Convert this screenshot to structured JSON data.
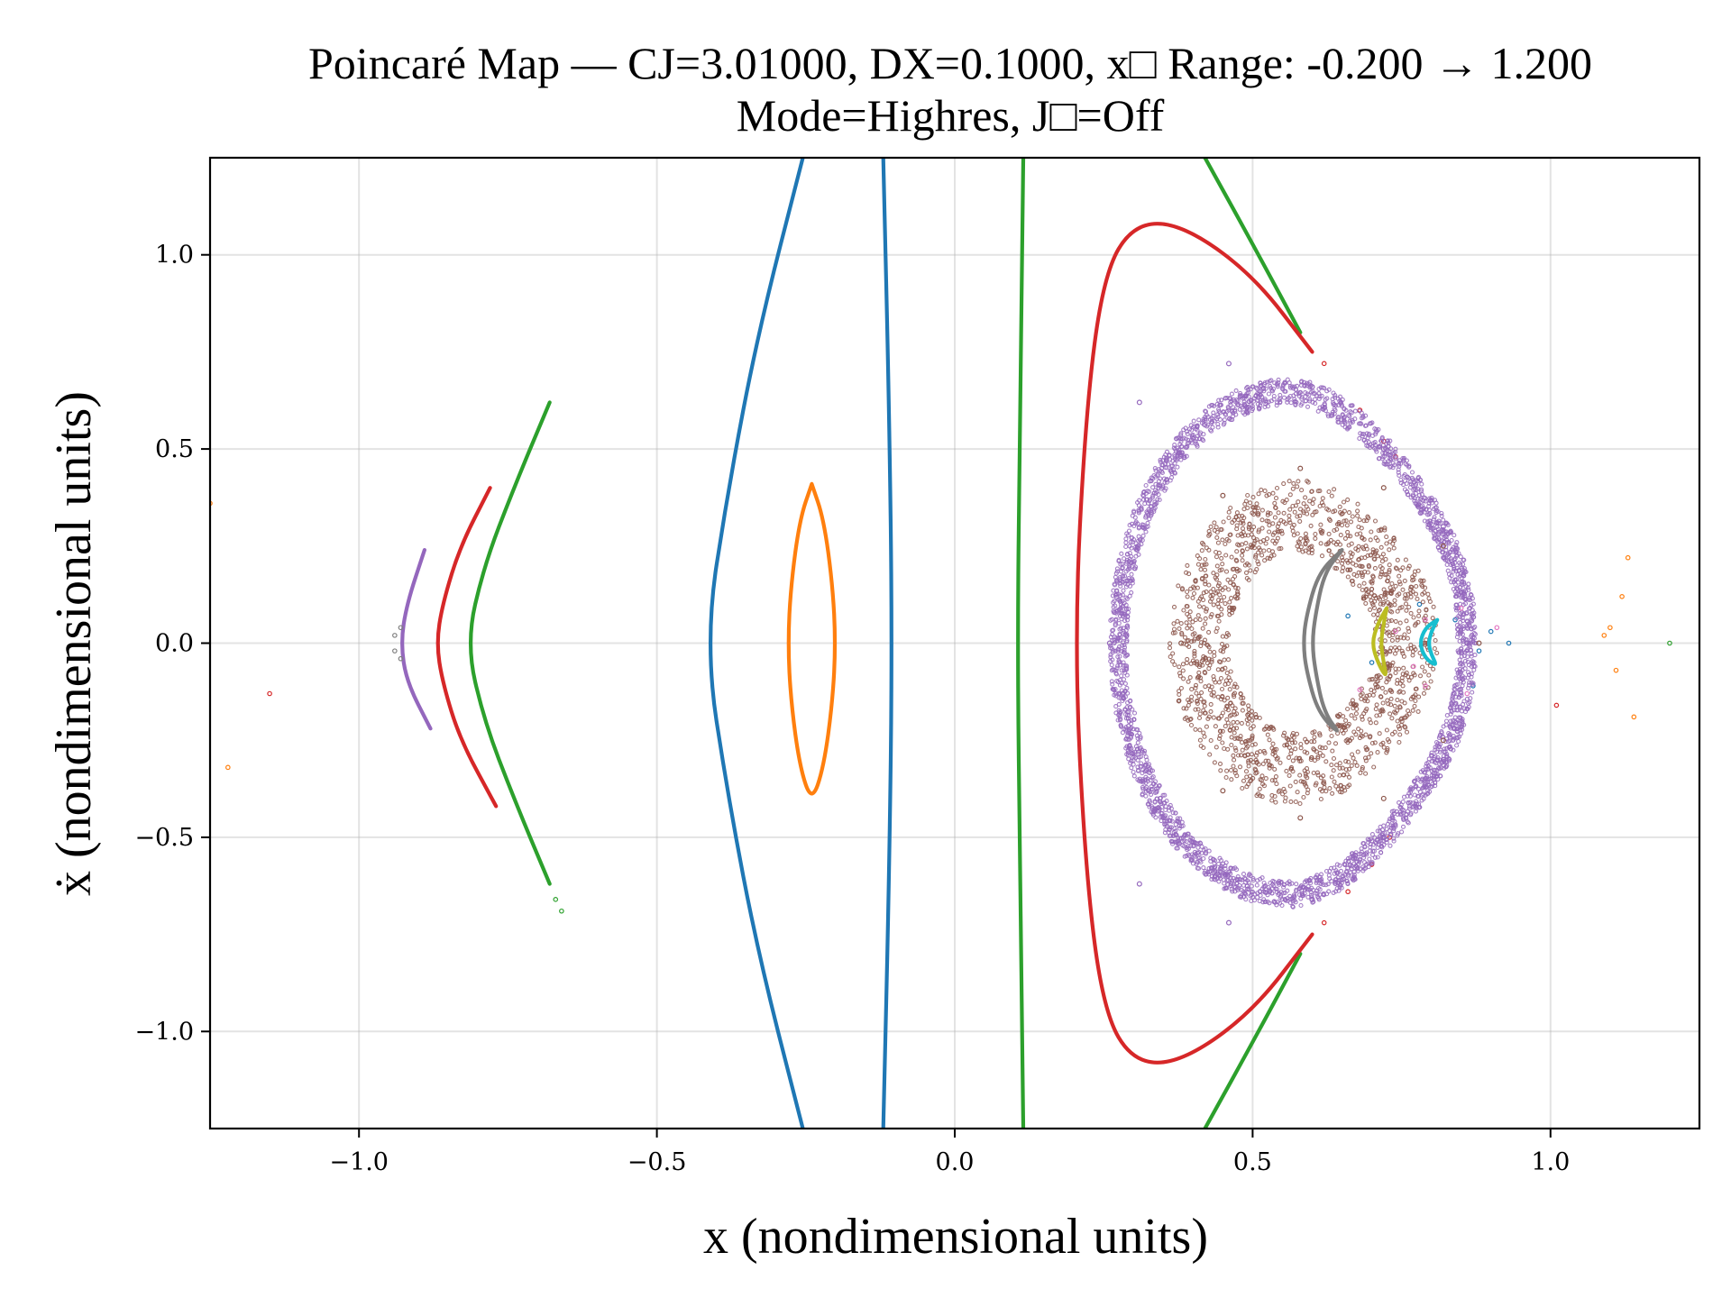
{
  "chart_data": {
    "type": "scatter",
    "title": "Poincaré Map — CJ=3.01000, DX=0.1000, x□ Range: -0.200 → 1.200",
    "subtitle": "Mode=Highres, J□=Off",
    "xlabel": "x (nondimensional units)",
    "ylabel": "ẋ (nondimensional units)",
    "xlim": [
      -1.25,
      1.25
    ],
    "ylim": [
      -1.25,
      1.25
    ],
    "x_ticks": [
      -1.0,
      -0.5,
      0.0,
      0.5,
      1.0
    ],
    "y_ticks": [
      -1.0,
      -0.5,
      0.0,
      0.5,
      1.0
    ],
    "x_tick_labels": [
      "−1.0",
      "−0.5",
      "0.0",
      "0.5",
      "1.0"
    ],
    "y_tick_labels": [
      "−1.0",
      "−0.5",
      "0.0",
      "0.5",
      "1.0"
    ],
    "grid": true,
    "series": [
      {
        "color": "#1f77b4",
        "style": "line",
        "points": [
          [
            -0.255,
            1.25
          ],
          [
            -0.33,
            0.8
          ],
          [
            -0.38,
            0.4
          ],
          [
            -0.42,
            0.0
          ],
          [
            -0.38,
            -0.4
          ],
          [
            -0.33,
            -0.8
          ],
          [
            -0.255,
            -1.25
          ]
        ]
      },
      {
        "color": "#1f77b4",
        "style": "line",
        "points": [
          [
            -0.12,
            1.25
          ],
          [
            -0.11,
            0.6
          ],
          [
            -0.105,
            0.0
          ],
          [
            -0.11,
            -0.6
          ],
          [
            -0.12,
            -1.25
          ]
        ]
      },
      {
        "color": "#1f77b4",
        "style": "dots",
        "points": [
          [
            0.66,
            0.07
          ],
          [
            0.7,
            -0.05
          ],
          [
            0.78,
            0.1
          ],
          [
            0.84,
            0.06
          ],
          [
            0.88,
            -0.02
          ],
          [
            0.9,
            0.03
          ],
          [
            0.93,
            0.0
          ],
          [
            0.87,
            -0.11
          ]
        ]
      },
      {
        "color": "#ff7f0e",
        "style": "line",
        "points": [
          [
            -0.24,
            0.41
          ],
          [
            -0.22,
            0.32
          ],
          [
            -0.205,
            0.15
          ],
          [
            -0.2,
            0.0
          ],
          [
            -0.205,
            -0.15
          ],
          [
            -0.22,
            -0.32
          ],
          [
            -0.24,
            -0.41
          ],
          [
            -0.26,
            -0.32
          ],
          [
            -0.275,
            -0.15
          ],
          [
            -0.28,
            0.0
          ],
          [
            -0.275,
            0.15
          ],
          [
            -0.26,
            0.32
          ],
          [
            -0.24,
            0.41
          ]
        ]
      },
      {
        "color": "#ff7f0e",
        "style": "dots",
        "points": [
          [
            -1.25,
            0.36
          ],
          [
            -1.22,
            -0.32
          ],
          [
            1.1,
            0.04
          ],
          [
            1.09,
            0.02
          ],
          [
            1.11,
            -0.07
          ],
          [
            1.13,
            0.22
          ],
          [
            1.14,
            -0.19
          ],
          [
            1.12,
            0.12
          ]
        ]
      },
      {
        "color": "#2ca02c",
        "style": "line",
        "points": [
          [
            0.115,
            1.25
          ],
          [
            0.11,
            0.6
          ],
          [
            0.105,
            0.0
          ],
          [
            0.11,
            -0.6
          ],
          [
            0.115,
            -1.25
          ]
        ]
      },
      {
        "color": "#2ca02c",
        "style": "line",
        "points": [
          [
            -0.68,
            0.62
          ],
          [
            -0.74,
            0.4
          ],
          [
            -0.79,
            0.2
          ],
          [
            -0.82,
            0.0
          ],
          [
            -0.79,
            -0.2
          ],
          [
            -0.74,
            -0.4
          ],
          [
            -0.68,
            -0.62
          ]
        ]
      },
      {
        "color": "#2ca02c",
        "style": "line",
        "points": [
          [
            0.42,
            1.25
          ],
          [
            0.51,
            1.0
          ],
          [
            0.58,
            0.8
          ]
        ]
      },
      {
        "color": "#2ca02c",
        "style": "line",
        "points": [
          [
            0.42,
            -1.25
          ],
          [
            0.51,
            -1.0
          ],
          [
            0.58,
            -0.8
          ]
        ]
      },
      {
        "color": "#2ca02c",
        "style": "dots",
        "points": [
          [
            -0.66,
            -0.69
          ],
          [
            -0.67,
            -0.66
          ],
          [
            1.2,
            0.0
          ]
        ]
      },
      {
        "color": "#d62728",
        "style": "line",
        "points": [
          [
            0.6,
            0.75
          ],
          [
            0.5,
            0.95
          ],
          [
            0.38,
            1.08
          ],
          [
            0.3,
            1.08
          ],
          [
            0.25,
            0.95
          ],
          [
            0.22,
            0.6
          ],
          [
            0.2,
            0.0
          ],
          [
            0.22,
            -0.6
          ],
          [
            0.25,
            -0.95
          ],
          [
            0.3,
            -1.08
          ],
          [
            0.38,
            -1.08
          ],
          [
            0.5,
            -0.95
          ],
          [
            0.6,
            -0.75
          ]
        ]
      },
      {
        "color": "#d62728",
        "style": "dots",
        "points": [
          [
            0.62,
            0.72
          ],
          [
            0.68,
            0.6
          ],
          [
            0.72,
            0.52
          ],
          [
            0.74,
            0.48
          ],
          [
            0.62,
            -0.72
          ],
          [
            0.66,
            -0.64
          ],
          [
            0.7,
            -0.57
          ],
          [
            0.73,
            -0.5
          ]
        ]
      },
      {
        "color": "#d62728",
        "style": "line",
        "points": [
          [
            -0.78,
            0.4
          ],
          [
            -0.83,
            0.25
          ],
          [
            -0.86,
            0.1
          ],
          [
            -0.87,
            0.0
          ],
          [
            -0.86,
            -0.1
          ],
          [
            -0.83,
            -0.25
          ],
          [
            -0.77,
            -0.42
          ]
        ]
      },
      {
        "color": "#d62728",
        "style": "dots",
        "points": [
          [
            -1.15,
            -0.13
          ],
          [
            1.01,
            -0.16
          ]
        ]
      },
      {
        "color": "#9467bd",
        "style": "ring",
        "center": [
          0.56,
          0.0
        ],
        "rx": 0.3,
        "ry": 0.68,
        "points": [
          [
            0.26,
            0.0
          ],
          [
            0.31,
            0.62
          ],
          [
            0.46,
            0.72
          ],
          [
            0.6,
            0.66
          ],
          [
            0.72,
            0.5
          ],
          [
            0.82,
            0.3
          ],
          [
            0.86,
            0.0
          ],
          [
            0.82,
            -0.3
          ],
          [
            0.72,
            -0.5
          ],
          [
            0.6,
            -0.66
          ],
          [
            0.46,
            -0.72
          ],
          [
            0.31,
            -0.62
          ]
        ]
      },
      {
        "color": "#9467bd",
        "style": "line",
        "points": [
          [
            -0.89,
            0.24
          ],
          [
            -0.92,
            0.1
          ],
          [
            -0.93,
            0.0
          ],
          [
            -0.92,
            -0.1
          ],
          [
            -0.88,
            -0.22
          ]
        ]
      },
      {
        "color": "#8c564b",
        "style": "ring",
        "center": [
          0.58,
          0.0
        ],
        "rx": 0.22,
        "ry": 0.42,
        "points": [
          [
            0.38,
            0.0
          ],
          [
            0.45,
            0.38
          ],
          [
            0.58,
            0.45
          ],
          [
            0.72,
            0.4
          ],
          [
            0.82,
            0.25
          ],
          [
            0.88,
            0.0
          ],
          [
            0.82,
            -0.25
          ],
          [
            0.72,
            -0.4
          ],
          [
            0.58,
            -0.45
          ],
          [
            0.45,
            -0.38
          ]
        ]
      },
      {
        "color": "#e377c2",
        "style": "dots",
        "points": [
          [
            0.68,
            -0.12
          ],
          [
            0.74,
            0.03
          ],
          [
            0.79,
            0.06
          ],
          [
            0.85,
            0.09
          ],
          [
            0.91,
            0.04
          ],
          [
            0.77,
            -0.06
          ],
          [
            0.86,
            -0.13
          ],
          [
            0.79,
            -0.11
          ]
        ]
      },
      {
        "color": "#7f7f7f",
        "style": "line",
        "points": [
          [
            0.65,
            0.24
          ],
          [
            0.61,
            0.18
          ],
          [
            0.59,
            0.07
          ],
          [
            0.585,
            0.0
          ],
          [
            0.59,
            -0.07
          ],
          [
            0.61,
            -0.18
          ],
          [
            0.65,
            -0.24
          ],
          [
            0.62,
            -0.18
          ],
          [
            0.605,
            -0.07
          ],
          [
            0.6,
            0.0
          ],
          [
            0.605,
            0.07
          ],
          [
            0.62,
            0.18
          ],
          [
            0.65,
            0.24
          ]
        ]
      },
      {
        "color": "#7f7f7f",
        "style": "dots",
        "points": [
          [
            -0.94,
            0.02
          ],
          [
            -0.94,
            -0.02
          ],
          [
            -0.93,
            0.04
          ],
          [
            -0.93,
            -0.04
          ]
        ]
      },
      {
        "color": "#bcbd22",
        "style": "line",
        "points": [
          [
            0.725,
            0.09
          ],
          [
            0.71,
            0.05
          ],
          [
            0.7,
            0.0
          ],
          [
            0.71,
            -0.05
          ],
          [
            0.725,
            -0.09
          ],
          [
            0.72,
            -0.05
          ],
          [
            0.715,
            0.0
          ],
          [
            0.72,
            0.05
          ],
          [
            0.725,
            0.09
          ]
        ]
      },
      {
        "color": "#17becf",
        "style": "line",
        "points": [
          [
            0.81,
            0.06
          ],
          [
            0.79,
            0.04
          ],
          [
            0.78,
            0.0
          ],
          [
            0.79,
            -0.04
          ],
          [
            0.81,
            -0.06
          ],
          [
            0.8,
            -0.03
          ],
          [
            0.795,
            0.0
          ],
          [
            0.8,
            0.03
          ],
          [
            0.81,
            0.06
          ]
        ]
      }
    ]
  }
}
